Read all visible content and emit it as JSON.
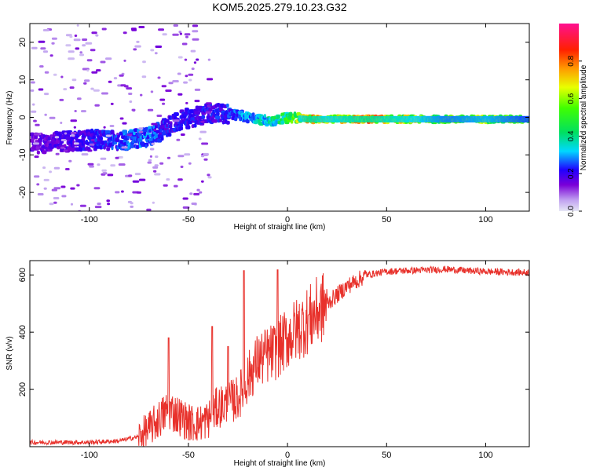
{
  "title": "KOM5.2025.279.10.23.G32",
  "colors": {
    "snr_line": "#e8312b",
    "axis": "#000000",
    "background": "#ffffff"
  },
  "chart_data": [
    {
      "type": "heatmap",
      "name": "spectrogram",
      "xlabel": "Height of straight line (km)",
      "ylabel": "Frequency (Hz)",
      "xlim": [
        -130,
        122
      ],
      "ylim": [
        -25,
        25
      ],
      "xticks": [
        -100,
        -50,
        0,
        50,
        100
      ],
      "yticks": [
        -20,
        -10,
        0,
        10,
        20
      ],
      "colorbar": {
        "label": "Normalized spectral amplitude",
        "range": [
          0,
          1
        ],
        "ticks": [
          0.0,
          0.2,
          0.4,
          0.6,
          0.8
        ]
      },
      "ridge": {
        "description": "dominant frequency vs height",
        "heights_km": [
          -130,
          -100,
          -80,
          -70,
          -60,
          -50,
          -40,
          -30,
          -20,
          -10,
          0,
          10,
          20,
          40,
          60,
          80,
          100,
          122
        ],
        "frequency_hz": [
          -7,
          -6,
          -6,
          -5,
          -2,
          0,
          1,
          1,
          0,
          -1,
          0,
          -0.5,
          -0.5,
          -0.5,
          -0.5,
          -0.5,
          -0.5,
          -0.5
        ],
        "amplitude": [
          0.15,
          0.2,
          0.25,
          0.25,
          0.2,
          0.2,
          0.2,
          0.22,
          0.3,
          0.35,
          0.45,
          0.7,
          0.6,
          0.7,
          0.6,
          0.5,
          0.55,
          0.45
        ]
      }
    },
    {
      "type": "line",
      "name": "snr",
      "xlabel": "Height of straight line (km)",
      "ylabel": "SNR (v/v)",
      "xlim": [
        -130,
        122
      ],
      "ylim": [
        0,
        650
      ],
      "xticks": [
        -100,
        -50,
        0,
        50,
        100
      ],
      "yticks": [
        200,
        400,
        600
      ],
      "series": [
        {
          "name": "SNR",
          "x": [
            -130,
            -100,
            -85,
            -75,
            -70,
            -65,
            -60,
            -55,
            -50,
            -45,
            -40,
            -35,
            -30,
            -25,
            -20,
            -15,
            -10,
            -5,
            0,
            5,
            10,
            15,
            20,
            25,
            30,
            35,
            40,
            50,
            60,
            70,
            80,
            90,
            100,
            110,
            122
          ],
          "y": [
            15,
            15,
            20,
            35,
            60,
            95,
            130,
            110,
            85,
            80,
            95,
            140,
            150,
            170,
            240,
            300,
            320,
            340,
            380,
            410,
            440,
            470,
            500,
            530,
            560,
            580,
            600,
            612,
            615,
            617,
            620,
            615,
            612,
            610,
            608
          ]
        }
      ],
      "peaks": {
        "x": [
          -60,
          -38,
          -30,
          -22,
          -5
        ],
        "y": [
          380,
          420,
          350,
          615,
          618
        ]
      }
    }
  ]
}
